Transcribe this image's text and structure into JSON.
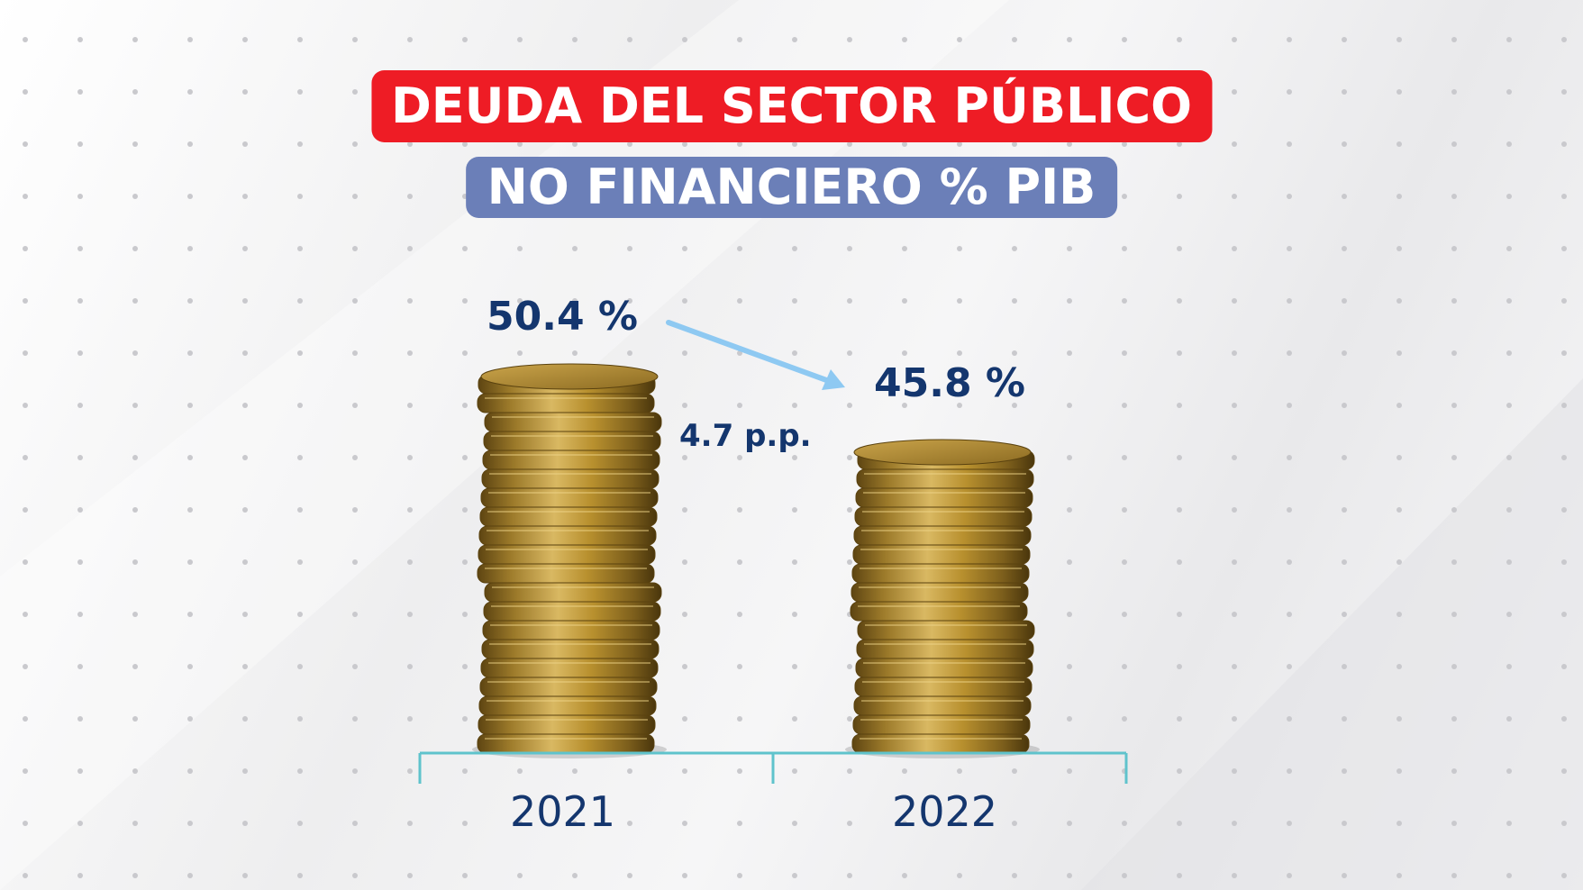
{
  "title": {
    "line1": "DEUDA DEL SECTOR PÚBLICO",
    "line2": "NO FINANCIERO % PIB"
  },
  "colors": {
    "title_line1_bg": "#ee1c25",
    "title_line2_bg": "#6b7fb8",
    "text_navy": "#14366e",
    "arrow": "#8ec9f2",
    "axis": "#5fc3cc",
    "coin_gold": "#b8902e"
  },
  "chart_data": {
    "type": "bar",
    "categories": [
      "2021",
      "2022"
    ],
    "values": [
      50.4,
      45.8
    ],
    "value_labels": [
      "50.4 %",
      "45.8 %"
    ],
    "change_label": "4.7 p.p.",
    "bar_style": "coin-stacks",
    "grid": false,
    "legend": "none"
  }
}
